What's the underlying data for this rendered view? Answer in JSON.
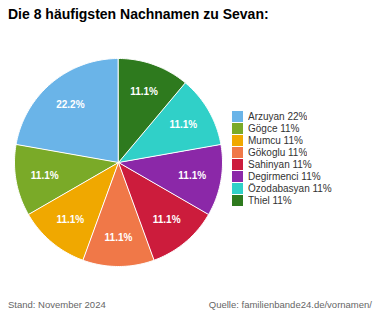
{
  "chart_data": {
    "type": "pie",
    "title": "Die 8 häufigsten Nachnamen zu Sevan:",
    "categories": [
      "Arzuyan 22%",
      "Gögce 11%",
      "Mumcu 11%",
      "Gökoglu 11%",
      "Sahinyan 11%",
      "Degirmenci 11%",
      "Özodabasyan 11%",
      "Thiel 11%"
    ],
    "values": [
      22.2,
      11.1,
      11.1,
      11.1,
      11.1,
      11.1,
      11.1,
      11.1
    ],
    "value_labels": [
      "22.2%",
      "11.1%",
      "11.1%",
      "11.1%",
      "11.1%",
      "11.1%",
      "11.1%",
      "11.1%"
    ],
    "colors": [
      "#6ab4e8",
      "#7aaa28",
      "#f0a800",
      "#f07848",
      "#cc1c3c",
      "#8b28a8",
      "#30d0c8",
      "#2e7a1e"
    ],
    "data_labels": true,
    "legend": "right",
    "annotations": [
      "Stand: November 2024",
      "Quelle: familienbande24.de/vornamen/"
    ]
  }
}
